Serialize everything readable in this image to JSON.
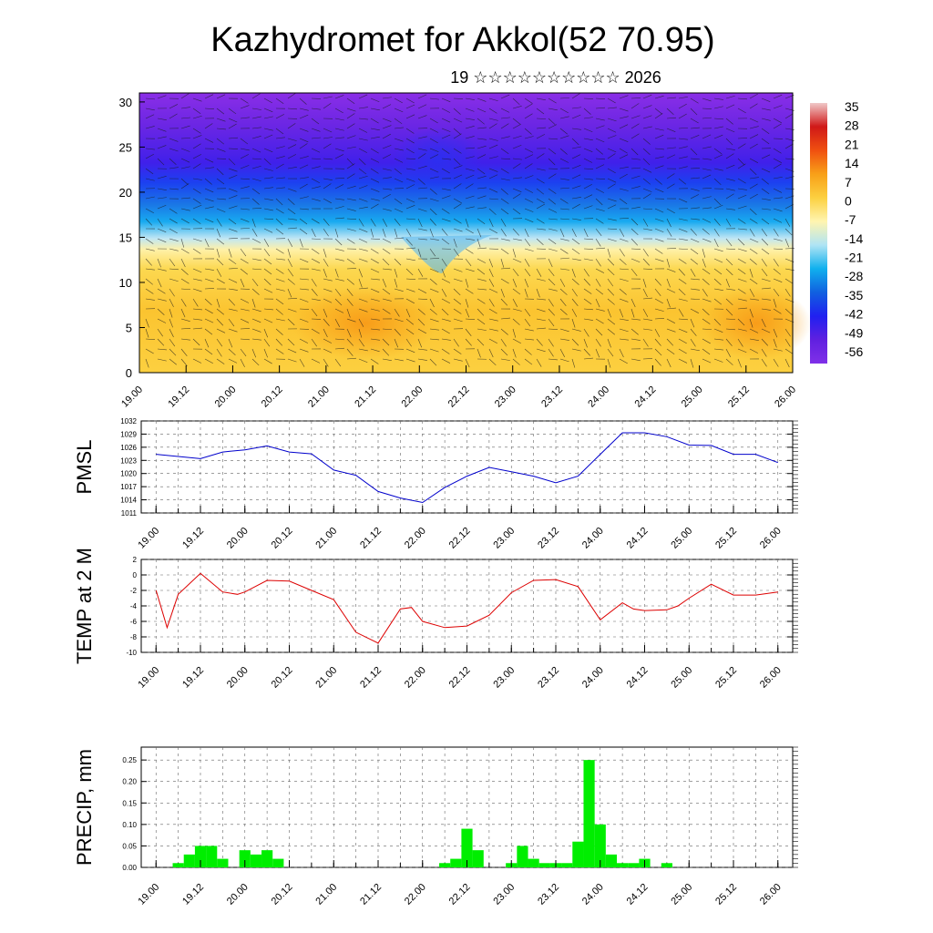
{
  "title": "Kazhydromet for Akkol(52 70.95)",
  "subtitle": "19 ☆☆☆☆☆☆☆☆☆☆ 2026",
  "chart_data": [
    {
      "type": "heatmap",
      "name": "cross-section",
      "ylim": [
        0,
        31
      ],
      "yticks": [
        0,
        5,
        10,
        15,
        20,
        25,
        30
      ],
      "xlim": [
        0,
        84
      ],
      "xtick_labels": [
        "19.00",
        "19.12",
        "20.00",
        "20.12",
        "21.00",
        "21.12",
        "22.00",
        "22.12",
        "23.00",
        "23.12",
        "24.00",
        "24.12",
        "25.00",
        "25.12",
        "26.00"
      ],
      "colorbar": {
        "labels": [
          "35",
          "28",
          "21",
          "14",
          "7",
          "0",
          "-7",
          "-14",
          "-21",
          "-28",
          "-35",
          "-42",
          "-49",
          "-56"
        ],
        "stops": [
          "#f0c8c8",
          "#d01818",
          "#f05010",
          "#f8a018",
          "#fcd040",
          "#fff5b0",
          "#b0e4f4",
          "#10b0ee",
          "#1060e0",
          "#2020f0",
          "#6020e0",
          "#8030e8"
        ]
      }
    },
    {
      "type": "line",
      "name": "pmsl",
      "ylabel": "PMSL",
      "ylim": [
        1011,
        1032
      ],
      "yticks": [
        1011,
        1014,
        1017,
        1020,
        1023,
        1026,
        1029,
        1032
      ],
      "xlim": [
        -2,
        86
      ],
      "xtick_labels": [
        "19.00",
        "19.12",
        "20.00",
        "20.12",
        "21.00",
        "21.12",
        "22.00",
        "22.12",
        "23.00",
        "23.12",
        "24.00",
        "24.12",
        "25.00",
        "25.12",
        "26.00"
      ],
      "color": "#0000cc",
      "x": [
        0,
        3,
        6,
        9,
        12,
        15,
        18,
        21,
        24,
        27,
        30,
        33,
        36,
        39,
        42,
        45,
        48,
        51,
        54,
        57,
        60,
        63,
        66,
        69,
        72,
        75,
        78,
        81,
        84
      ],
      "values": [
        1024.4,
        1023.9,
        1023.4,
        1024.9,
        1025.4,
        1026.3,
        1024.9,
        1024.5,
        1020.8,
        1019.6,
        1015.9,
        1014.4,
        1013.4,
        1016.8,
        1019.4,
        1021.4,
        1020.4,
        1019.4,
        1017.9,
        1019.4,
        1024.4,
        1029.3,
        1029.3,
        1028.4,
        1026.5,
        1026.4,
        1024.4,
        1024.4,
        1022.5
      ]
    },
    {
      "type": "line",
      "name": "temp",
      "ylabel": "TEMP at 2 M",
      "ylim": [
        -10,
        2
      ],
      "yticks": [
        -10,
        -8,
        -6,
        -4,
        -2,
        0,
        2
      ],
      "xlim": [
        -2,
        86
      ],
      "xtick_labels": [
        "19.00",
        "19.12",
        "20.00",
        "20.12",
        "21.00",
        "21.12",
        "22.00",
        "22.12",
        "23.00",
        "23.12",
        "24.00",
        "24.12",
        "25.00",
        "25.12",
        "26.00"
      ],
      "color": "#dd0000",
      "x": [
        0,
        1.5,
        3,
        6,
        9,
        11,
        12,
        15,
        18,
        21,
        24,
        27,
        30,
        33,
        34.5,
        36,
        39,
        42,
        45,
        48,
        51,
        54,
        57,
        60,
        63,
        64.5,
        66,
        69,
        70.5,
        72,
        75,
        78,
        81,
        84
      ],
      "values": [
        -2,
        -6.8,
        -2.5,
        0.2,
        -2.2,
        -2.5,
        -2.2,
        -0.7,
        -0.8,
        -2,
        -3.2,
        -7.4,
        -8.8,
        -4.4,
        -4.2,
        -6,
        -6.8,
        -6.6,
        -5.2,
        -2.3,
        -0.7,
        -0.6,
        -1.5,
        -5.8,
        -3.6,
        -4.4,
        -4.6,
        -4.5,
        -4,
        -3,
        -1.2,
        -2.6,
        -2.6,
        -2.2
      ]
    },
    {
      "type": "bar",
      "name": "precip",
      "ylabel": "PRECIP, mm",
      "ylim": [
        0,
        0.28
      ],
      "yticks": [
        "0.00",
        "0.05",
        "0.10",
        "0.15",
        "0.20",
        "0.25"
      ],
      "xlim": [
        -2,
        86
      ],
      "xtick_labels": [
        "19.00",
        "19.12",
        "20.00",
        "20.12",
        "21.00",
        "21.12",
        "22.00",
        "22.12",
        "23.00",
        "23.12",
        "24.00",
        "24.12",
        "25.00",
        "25.12",
        "26.00"
      ],
      "color": "#00ee00",
      "x": [
        3,
        4.5,
        6,
        7.5,
        9,
        10.5,
        12,
        13.5,
        15,
        16.5,
        18,
        19.5,
        21,
        22.5,
        24,
        25.5,
        27,
        28.5,
        30,
        31.5,
        33,
        34.5,
        36,
        37.5,
        39,
        40.5,
        42,
        43.5,
        45,
        46.5,
        48,
        49.5,
        51,
        52.5,
        54,
        55.5,
        57,
        58.5,
        60,
        61.5,
        63,
        64.5,
        66,
        67.5,
        69,
        70.5,
        72,
        73.5,
        75,
        76.5,
        78,
        79.5,
        81,
        82.5
      ],
      "values": [
        0.01,
        0.03,
        0.05,
        0.05,
        0.02,
        0,
        0.04,
        0.03,
        0.04,
        0.02,
        0,
        0,
        0,
        0,
        0,
        0,
        0,
        0,
        0,
        0,
        0,
        0,
        0,
        0,
        0.01,
        0.02,
        0.09,
        0.04,
        0,
        0,
        0.01,
        0.05,
        0.02,
        0.01,
        0.01,
        0.01,
        0.06,
        0.25,
        0.1,
        0.03,
        0.01,
        0.01,
        0.02,
        0,
        0.01,
        0,
        0,
        0,
        0,
        0,
        0,
        0,
        0,
        0
      ]
    }
  ]
}
